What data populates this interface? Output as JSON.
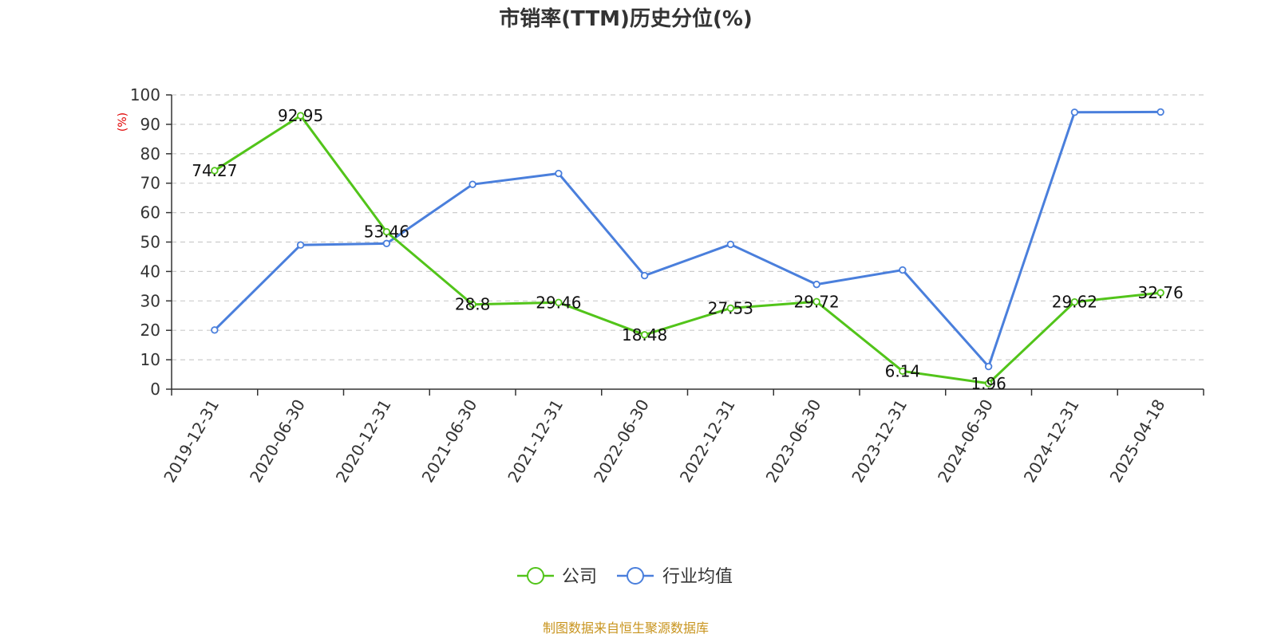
{
  "chart_data": {
    "type": "line",
    "title": "市销率(TTM)历史分位(%)",
    "ylabel": "(%)",
    "xlabel": "",
    "ylim": [
      0,
      100
    ],
    "yticks": [
      0,
      10,
      20,
      30,
      40,
      50,
      60,
      70,
      80,
      90,
      100
    ],
    "grid": true,
    "legend_position": "bottom-center",
    "categories": [
      "2019-12-31",
      "2020-06-30",
      "2020-12-31",
      "2021-06-30",
      "2021-12-31",
      "2022-06-30",
      "2022-12-31",
      "2023-06-30",
      "2023-12-31",
      "2024-06-30",
      "2024-12-31",
      "2025-04-18"
    ],
    "series": [
      {
        "name": "公司",
        "color": "#52c41a",
        "values": [
          74.27,
          92.95,
          53.46,
          28.8,
          29.46,
          18.48,
          27.53,
          29.72,
          6.14,
          1.96,
          29.62,
          32.76
        ],
        "labels": [
          "74.27",
          "92.95",
          "53.46",
          "28.8",
          "29.46",
          "18.48",
          "27.53",
          "29.72",
          "6.14",
          "1.96",
          "29.62",
          "32.76"
        ]
      },
      {
        "name": "行业均值",
        "color": "#4a7fdc",
        "values": [
          20.1,
          49.0,
          49.5,
          69.6,
          73.3,
          38.6,
          49.2,
          35.6,
          40.5,
          7.7,
          94.1,
          94.2
        ]
      }
    ]
  },
  "source_note": "制图数据来自恒生聚源数据库"
}
